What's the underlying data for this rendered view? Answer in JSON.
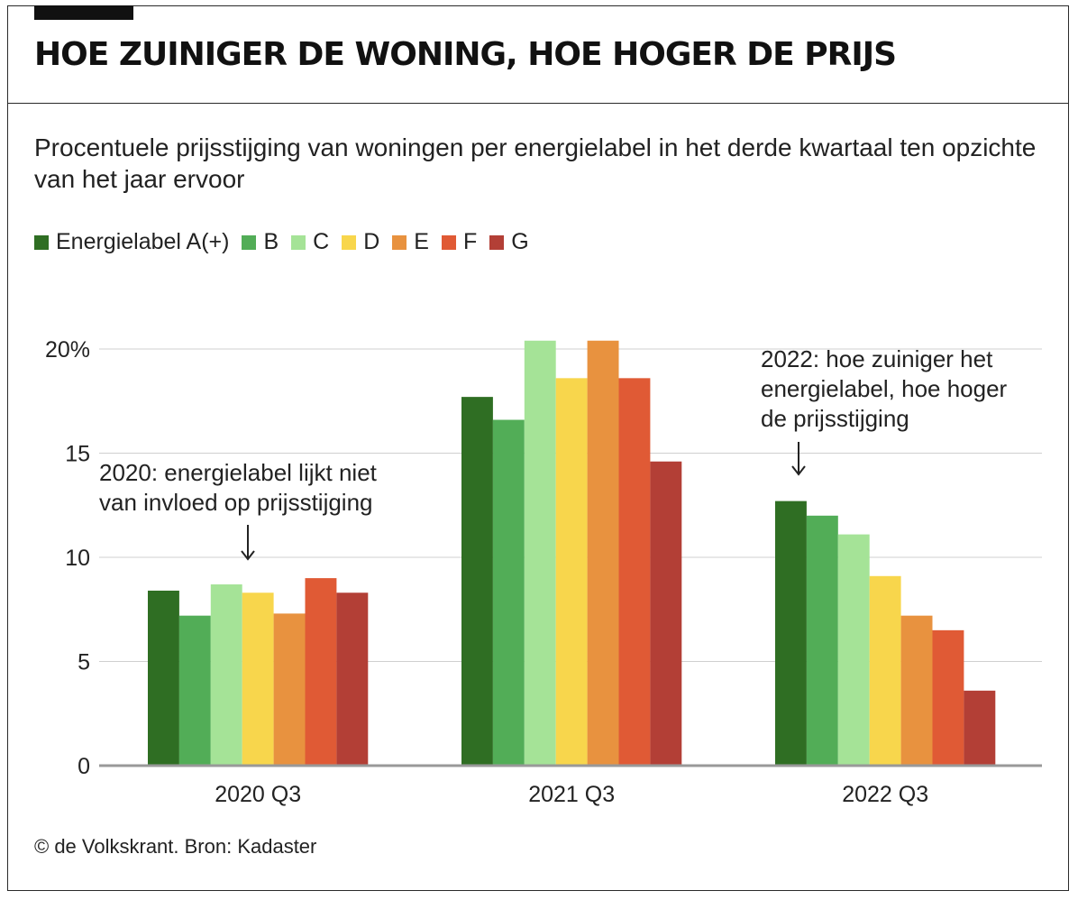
{
  "header": {
    "title": "HOE ZUINIGER DE WONING, HOE HOGER DE PRIJS",
    "subtitle": "Procentuele prijsstijging van woningen per energielabel in het derde kwartaal ten opzichte van het jaar ervoor"
  },
  "legend": [
    {
      "label": "Energielabel A(+)",
      "color": "#2f6e23"
    },
    {
      "label": "B",
      "color": "#52ad57"
    },
    {
      "label": "C",
      "color": "#a5e397"
    },
    {
      "label": "D",
      "color": "#f8d64c"
    },
    {
      "label": "E",
      "color": "#e8923f"
    },
    {
      "label": "F",
      "color": "#e05a35"
    },
    {
      "label": "G",
      "color": "#b33f36"
    }
  ],
  "chart_data": {
    "type": "bar",
    "categories": [
      "2020 Q3",
      "2021 Q3",
      "2022 Q3"
    ],
    "series": [
      {
        "name": "Energielabel A(+)",
        "color": "#2f6e23",
        "values": [
          8.4,
          17.7,
          12.7
        ]
      },
      {
        "name": "B",
        "color": "#52ad57",
        "values": [
          7.2,
          16.6,
          12.0
        ]
      },
      {
        "name": "C",
        "color": "#a5e397",
        "values": [
          8.7,
          20.4,
          11.1
        ]
      },
      {
        "name": "D",
        "color": "#f8d64c",
        "values": [
          8.3,
          18.6,
          9.1
        ]
      },
      {
        "name": "E",
        "color": "#e8923f",
        "values": [
          7.3,
          20.4,
          7.2
        ]
      },
      {
        "name": "F",
        "color": "#e05a35",
        "values": [
          9.0,
          18.6,
          6.5
        ]
      },
      {
        "name": "G",
        "color": "#b33f36",
        "values": [
          8.3,
          14.6,
          3.6
        ]
      }
    ],
    "yticks": [
      {
        "value": 0,
        "label": "0"
      },
      {
        "value": 5,
        "label": "5"
      },
      {
        "value": 10,
        "label": "10"
      },
      {
        "value": 15,
        "label": "15"
      },
      {
        "value": 20,
        "label": "20%"
      }
    ],
    "ylim": [
      0,
      20.5
    ],
    "grid": true,
    "legend_position": "top-left",
    "annotations": [
      {
        "category": "2020 Q3",
        "lines": [
          "2020: energielabel lijkt niet",
          "van invloed op prijsstijging"
        ]
      },
      {
        "category": "2022 Q3",
        "lines": [
          "2022: hoe zuiniger het",
          "energielabel, hoe hoger",
          "de prijsstijging"
        ]
      }
    ]
  },
  "footer": {
    "credit": "© de Volkskrant. Bron: Kadaster"
  }
}
